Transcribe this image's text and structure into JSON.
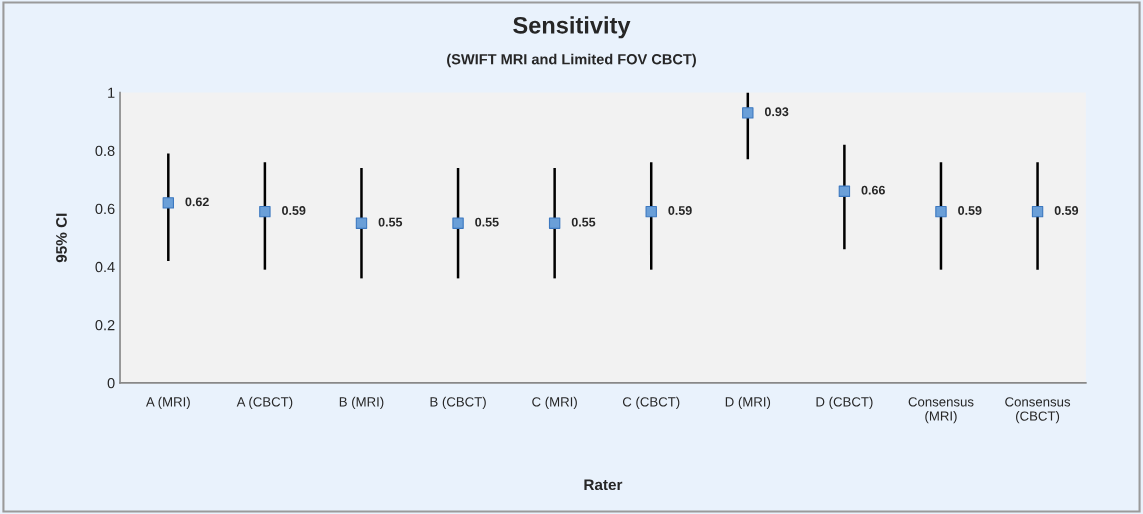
{
  "chart_data": {
    "type": "scatter",
    "title": "Sensitivity",
    "subtitle": "(SWIFT MRI and Limited FOV CBCT)",
    "xlabel": "Rater",
    "ylabel": "95% CI",
    "categories": [
      "A (MRI)",
      "A (CBCT)",
      "B (MRI)",
      "B (CBCT)",
      "C (MRI)",
      "C (CBCT)",
      "D (MRI)",
      "D (CBCT)",
      "Consensus\n(MRI)",
      "Consensus\n(CBCT)"
    ],
    "series": [
      {
        "color": "#6a9fd8",
        "values": [
          0.62,
          0.59,
          0.55,
          0.55,
          0.55,
          0.59,
          0.93,
          0.66,
          0.59,
          0.59
        ],
        "errors": [
          [
            0.42,
            0.79
          ],
          [
            0.39,
            0.76
          ],
          [
            0.36,
            0.74
          ],
          [
            0.36,
            0.74
          ],
          [
            0.36,
            0.74
          ],
          [
            0.39,
            0.76
          ],
          [
            0.77,
            1.0
          ],
          [
            0.46,
            0.82
          ],
          [
            0.39,
            0.76
          ],
          [
            0.39,
            0.76
          ]
        ]
      }
    ],
    "ylim": [
      0,
      1
    ],
    "yticks": [
      0,
      0.2,
      0.4,
      0.6,
      0.8,
      1
    ],
    "data_labels": true,
    "marker": "square",
    "grid": false,
    "legend": false
  }
}
